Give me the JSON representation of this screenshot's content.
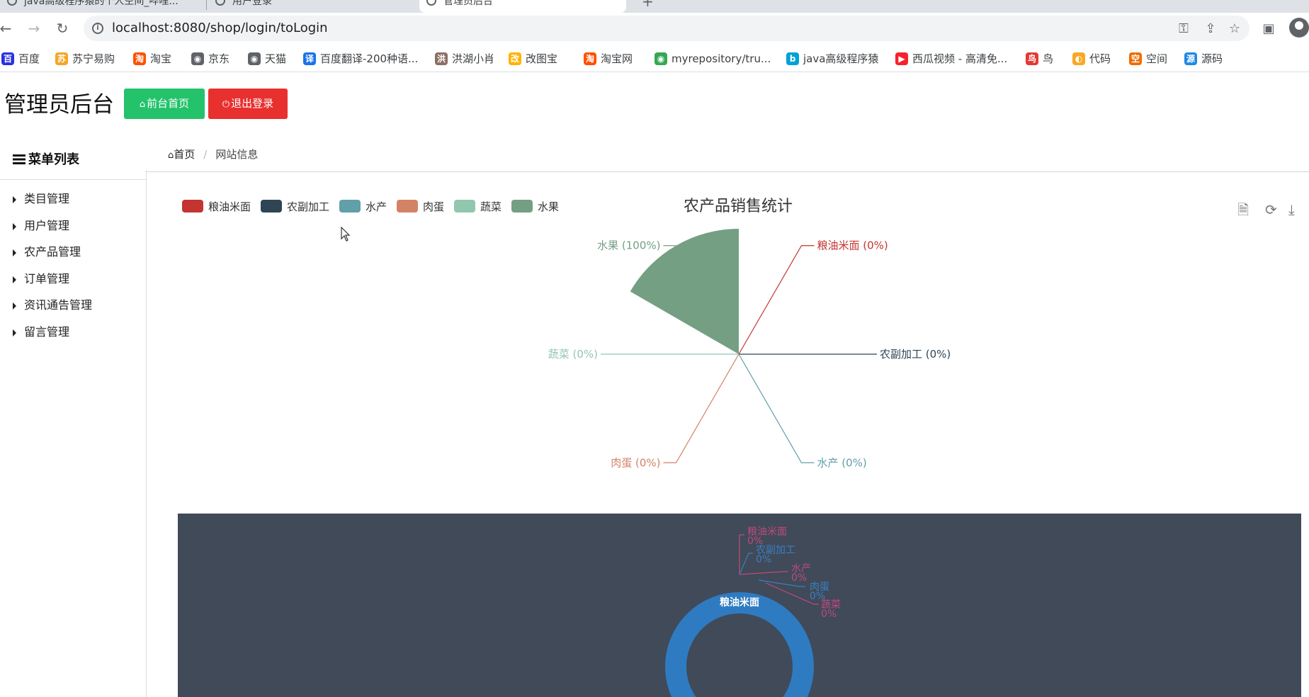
{
  "browser": {
    "tabs": [
      {
        "title": "java高级程序猿的个人空间_哔哩..."
      },
      {
        "title": "用户登录"
      },
      {
        "title": "管理员后台"
      }
    ],
    "url": "localhost:8080/shop/login/toLogin",
    "bookmarks": [
      {
        "label": "百度",
        "icon": "baidu-icon",
        "color": "#2932e1",
        "glyph": "百"
      },
      {
        "label": "苏宁易购",
        "icon": "suning-icon",
        "color": "#f5a623",
        "glyph": "苏"
      },
      {
        "label": "淘宝",
        "icon": "taobao-icon",
        "color": "#ff5000",
        "glyph": "淘"
      },
      {
        "label": "京东",
        "icon": "globe-icon",
        "color": "#5f6368",
        "glyph": "◉"
      },
      {
        "label": "天猫",
        "icon": "globe-icon",
        "color": "#5f6368",
        "glyph": "◉"
      },
      {
        "label": "百度翻译-200种语...",
        "icon": "translate-icon",
        "color": "#1a73e8",
        "glyph": "译"
      },
      {
        "label": "洪湖小肖",
        "icon": "user-icon",
        "color": "#8d6e63",
        "glyph": "洪"
      },
      {
        "label": "改图宝",
        "icon": "gaitubao-icon",
        "color": "#ffb300",
        "glyph": "改"
      },
      {
        "label": "淘宝网",
        "icon": "taobao-icon",
        "color": "#ff5000",
        "glyph": "淘"
      },
      {
        "label": "myrepository/tru...",
        "icon": "chrome-icon",
        "color": "#34a853",
        "glyph": "◉"
      },
      {
        "label": "java高级程序猿",
        "icon": "bilibili-icon",
        "color": "#00a1d6",
        "glyph": "b"
      },
      {
        "label": "西瓜视频 - 高清免...",
        "icon": "xigua-icon",
        "color": "#f5222d",
        "glyph": "▶"
      },
      {
        "label": "鸟",
        "icon": "bird-icon",
        "color": "#e53935",
        "glyph": "鸟"
      },
      {
        "label": "代码",
        "icon": "code-icon",
        "color": "#f9a825",
        "glyph": "◐"
      },
      {
        "label": "空间",
        "icon": "qzone-icon",
        "color": "#ef6c00",
        "glyph": "空"
      },
      {
        "label": "源码",
        "icon": "fish-icon",
        "color": "#1e88e5",
        "glyph": "源"
      }
    ]
  },
  "header": {
    "title": "管理员后台",
    "front_button": "前台首页",
    "logout_button": "退出登录"
  },
  "sidebar": {
    "heading": "菜单列表",
    "items": [
      {
        "label": "类目管理"
      },
      {
        "label": "用户管理"
      },
      {
        "label": "农产品管理"
      },
      {
        "label": "订单管理"
      },
      {
        "label": "资讯通告管理"
      },
      {
        "label": "留言管理"
      }
    ]
  },
  "breadcrumb": {
    "home": "首页",
    "current": "网站信息"
  },
  "colors": {
    "front_button": "#23c26b",
    "logout_button": "#e8302f",
    "dark_panel": "#404a59"
  },
  "chart_data": [
    {
      "type": "pie",
      "title": "农产品销售统计",
      "legend_position": "top-left",
      "toolbox": [
        "data-view-icon",
        "refresh-icon",
        "download-icon"
      ],
      "series": [
        {
          "name": "粮油米面",
          "value": 0,
          "percent_label": "0%",
          "color": "#c23531"
        },
        {
          "name": "农副加工",
          "value": 0,
          "percent_label": "0%",
          "color": "#2f4554"
        },
        {
          "name": "水产",
          "value": 0,
          "percent_label": "0%",
          "color": "#61a0a8"
        },
        {
          "name": "肉蛋",
          "value": 0,
          "percent_label": "0%",
          "color": "#d48265"
        },
        {
          "name": "蔬菜",
          "value": 0,
          "percent_label": "0%",
          "color": "#91c7ae"
        },
        {
          "name": "水果",
          "value": 1,
          "percent_label": "100%",
          "color": "#749f83"
        }
      ]
    },
    {
      "type": "pie",
      "style": "donut",
      "center_label": "粮油米面",
      "ring_color": "#2f7bc1",
      "series": [
        {
          "name": "粮油米面",
          "percent_label": "0%",
          "color": "#c0497b"
        },
        {
          "name": "农副加工",
          "percent_label": "0%",
          "color": "#3a7fc1"
        },
        {
          "name": "水产",
          "percent_label": "0%",
          "color": "#c0497b"
        },
        {
          "name": "肉蛋",
          "percent_label": "0%",
          "color": "#3a7fc1"
        },
        {
          "name": "蔬菜",
          "percent_label": "0%",
          "color": "#c0497b"
        }
      ]
    }
  ]
}
